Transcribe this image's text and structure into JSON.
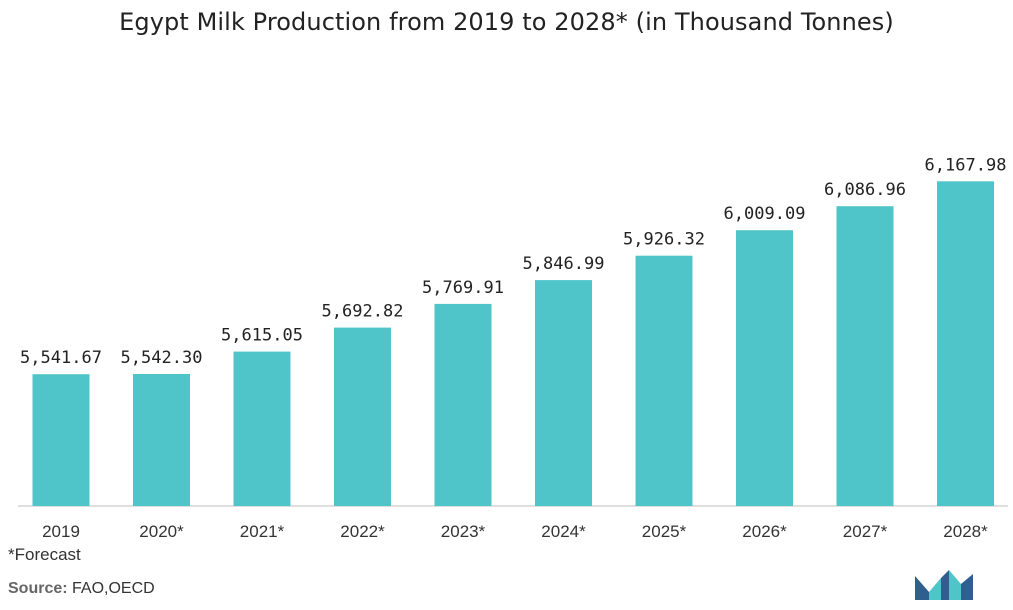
{
  "colors": {
    "bar": "#4fc4c9",
    "axis": "#bfbfbf",
    "text": "#222222",
    "logo_dark": "#2f5f8f",
    "logo_light": "#4fc4c9"
  },
  "chart_data": {
    "type": "bar",
    "title": "Egypt Milk Production from 2019 to 2028* (in Thousand Tonnes)",
    "xlabel": "",
    "ylabel": "",
    "categories": [
      "2019",
      "2020*",
      "2021*",
      "2022*",
      "2023*",
      "2024*",
      "2025*",
      "2026*",
      "2027*",
      "2028*"
    ],
    "values": [
      5541.67,
      5542.3,
      5615.05,
      5692.82,
      5769.91,
      5846.99,
      5926.32,
      6009.09,
      6086.96,
      6167.98
    ],
    "value_labels": [
      "5,541.67",
      "5,542.30",
      "5,615.05",
      "5,692.82",
      "5,769.91",
      "5,846.99",
      "5,926.32",
      "6,009.09",
      "6,086.96",
      "6,167.98"
    ],
    "grid": false,
    "legend": "none"
  },
  "footnote": "*Forecast",
  "source": {
    "label": "Source:",
    "text": "FAO,OECD"
  },
  "logo_icon": "mordor-intelligence-logo-icon"
}
